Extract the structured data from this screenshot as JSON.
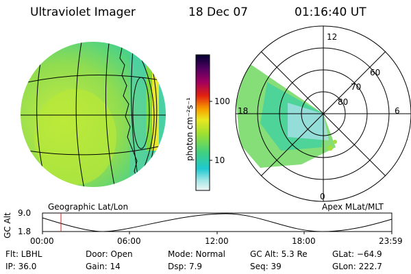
{
  "header": {
    "instrument": "Ultraviolet Imager",
    "date": "18 Dec 07",
    "time": "01:16:40 UT"
  },
  "colorbar": {
    "label": "photon cm⁻²s⁻¹",
    "tick_100": "100",
    "tick_10": "10"
  },
  "left_panel": {
    "caption": "Geographic Lat/Lon"
  },
  "right_panel": {
    "caption": "Apex MLat/MLT",
    "mlt_12": "12",
    "mlt_18": "18",
    "mlt_6": "6",
    "mlt_0": "0",
    "lat_60": "60",
    "lat_70": "70",
    "lat_80": "80"
  },
  "altitude_plot": {
    "ylabel": "GC Alt",
    "y_max": "9.0",
    "y_min": "1.8",
    "x_ticks": [
      "00:00",
      "06:00",
      "12:00",
      "18:00",
      "23:59"
    ],
    "current_marker_fraction": 0.053
  },
  "info": {
    "flt": "Flt: LBHL",
    "ip": "IP: 36.0",
    "door": "Door: Open",
    "gain": "Gain: 14",
    "mode": "Mode: Normal",
    "dsp": "Dsp:    7.9",
    "gc_alt": "GC Alt: 5.3 Re",
    "seq": "Seq: 39",
    "glat": "GLat:  −64.9",
    "glon": "GLon: 222.7"
  }
}
